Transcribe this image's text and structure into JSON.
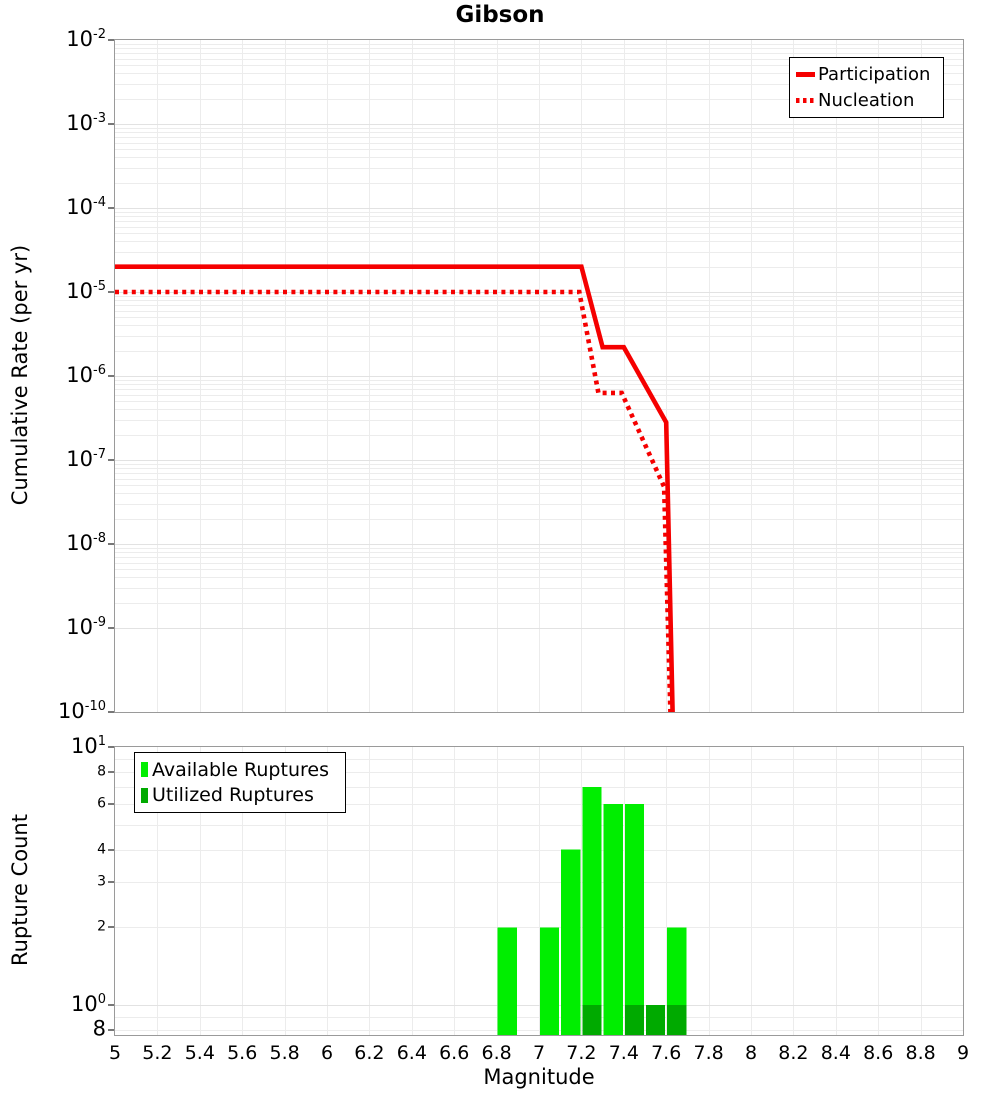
{
  "title": "Gibson",
  "colors": {
    "red": "#f50000",
    "light_green": "#00ee00",
    "dark_green": "#00aa00",
    "grid_minor": "#ececec",
    "grid_major": "#e2e2e2",
    "plot_border": "#9a9a9a"
  },
  "top_plot": {
    "ylabel": "Cumulative Rate (per yr)",
    "legend": [
      {
        "label": "Participation",
        "style": "solid"
      },
      {
        "label": "Nucleation",
        "style": "dotted"
      }
    ]
  },
  "bottom_plot": {
    "ylabel": "Rupture Count",
    "xlabel": "Magnitude",
    "legend": [
      {
        "label": "Available Ruptures",
        "swatch": "light_green"
      },
      {
        "label": "Utilized Ruptures",
        "swatch": "dark_green"
      }
    ]
  },
  "chart_data": [
    {
      "type": "line",
      "title": "Gibson",
      "ylabel": "Cumulative Rate (per yr)",
      "xlabel": "Magnitude",
      "yscale": "log",
      "xlim": [
        5,
        9
      ],
      "ylim": [
        1e-10,
        0.01
      ],
      "grid": true,
      "legend_position": "top-right",
      "yticks": [
        "10^-2",
        "10^-3",
        "10^-4",
        "10^-5",
        "10^-6",
        "10^-7",
        "10^-8",
        "10^-9",
        "10^-10"
      ],
      "series": [
        {
          "name": "Participation",
          "style": "solid",
          "color": "#f50000",
          "points": [
            [
              5.0,
              2e-05
            ],
            [
              7.2,
              2e-05
            ],
            [
              7.3,
              2.2e-06
            ],
            [
              7.4,
              2.2e-06
            ],
            [
              7.6,
              2.8e-07
            ],
            [
              7.63,
              1e-10
            ]
          ]
        },
        {
          "name": "Nucleation",
          "style": "dotted",
          "color": "#f50000",
          "points": [
            [
              5.0,
              1e-05
            ],
            [
              7.19,
              1e-05
            ],
            [
              7.28,
              6.3e-07
            ],
            [
              7.39,
              6.3e-07
            ],
            [
              7.59,
              4.8e-08
            ],
            [
              7.62,
              1e-10
            ]
          ]
        }
      ]
    },
    {
      "type": "bar",
      "ylabel": "Rupture Count",
      "xlabel": "Magnitude",
      "yscale": "log",
      "xlim": [
        5,
        9
      ],
      "ylim": [
        0.766,
        10
      ],
      "bin_width": 0.1,
      "grid": true,
      "legend_position": "top-left",
      "yticks": [
        {
          "t": "10^1",
          "v": 10,
          "kind": "major"
        },
        {
          "t": "8",
          "v": 8,
          "kind": "minor"
        },
        {
          "t": "6",
          "v": 6,
          "kind": "minor"
        },
        {
          "t": "4",
          "v": 4,
          "kind": "minor"
        },
        {
          "t": "3",
          "v": 3,
          "kind": "minor"
        },
        {
          "t": "2",
          "v": 2,
          "kind": "minor"
        },
        {
          "t": "10^0",
          "v": 1,
          "kind": "major"
        },
        {
          "t": "8",
          "v": 0.8,
          "kind": "major8"
        }
      ],
      "xtick_labels": [
        "5",
        "5.2",
        "5.4",
        "5.6",
        "5.8",
        "6",
        "6.2",
        "6.4",
        "6.6",
        "6.8",
        "7",
        "7.2",
        "7.4",
        "7.6",
        "7.8",
        "8",
        "8.2",
        "8.4",
        "8.6",
        "8.8",
        "9"
      ],
      "series": [
        {
          "name": "Available Ruptures",
          "color": "#00ee00",
          "bins": [
            [
              6.8,
              2
            ],
            [
              7.0,
              2
            ],
            [
              7.1,
              4
            ],
            [
              7.2,
              7
            ],
            [
              7.3,
              6
            ],
            [
              7.4,
              6
            ],
            [
              7.5,
              1
            ],
            [
              7.6,
              2
            ]
          ]
        },
        {
          "name": "Utilized Ruptures",
          "color": "#00aa00",
          "bins": [
            [
              7.2,
              1
            ],
            [
              7.4,
              1
            ],
            [
              7.5,
              1
            ],
            [
              7.6,
              1
            ]
          ]
        }
      ]
    }
  ]
}
